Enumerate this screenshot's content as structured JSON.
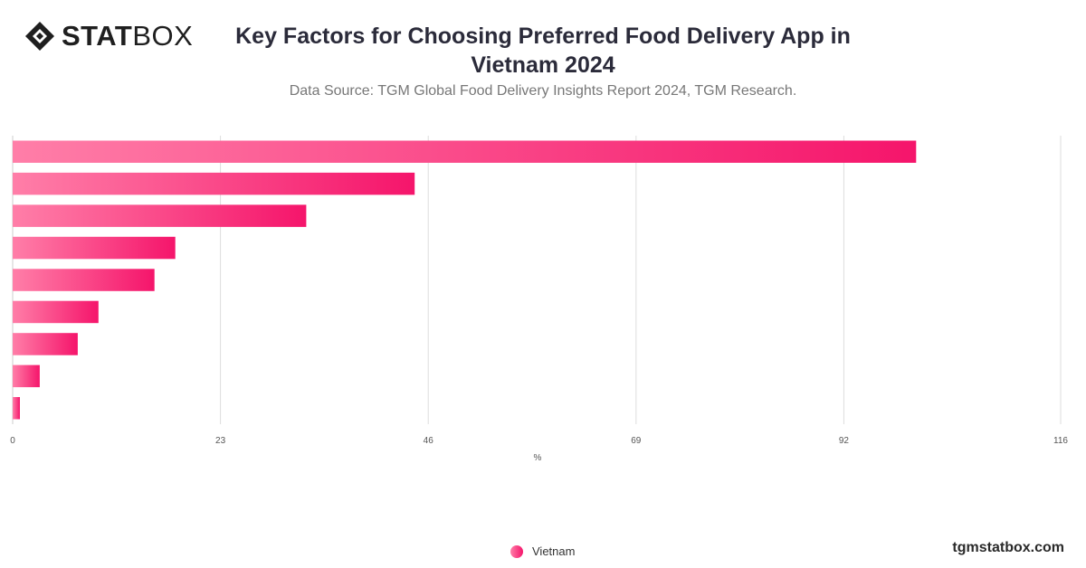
{
  "brand": {
    "name_bold": "STAT",
    "name_regular": "BOX",
    "url": "tgmstatbox.com"
  },
  "header": {
    "title": "Key Factors for Choosing Preferred Food Delivery App in Vietnam 2024",
    "subtitle": "Data Source: TGM Global Food Delivery Insights Report 2024, TGM Research."
  },
  "colors": {
    "bar_start": "#ff7ea8",
    "bar_end": "#f5156b",
    "grid": "#dddddd"
  },
  "chart_data": {
    "type": "bar",
    "orientation": "horizontal",
    "title": "Key Factors for Choosing Preferred Food Delivery App in Vietnam 2024",
    "subtitle": "Data Source: TGM Global Food Delivery Insights Report 2024, TGM Research.",
    "xlabel": "%",
    "xlim": [
      0,
      116
    ],
    "xticks": [
      "0",
      "23",
      "46",
      "69",
      "92",
      "116"
    ],
    "grid": true,
    "legend_position": "bottom-center",
    "series": [
      {
        "name": "Vietnam",
        "values": [
          100,
          44.5,
          32.5,
          18,
          15.7,
          9.5,
          7.2,
          3,
          0.8
        ]
      }
    ]
  }
}
